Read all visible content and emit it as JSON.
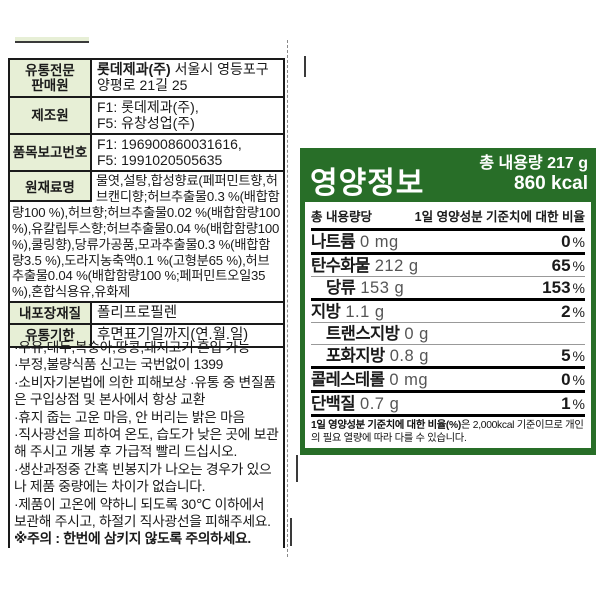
{
  "left_panel": {
    "table": {
      "rows": [
        {
          "label": "유통전문\n판매원",
          "value_bold": "롯데제과(주)",
          "value_rest": " 서울시 영등포구\n양평로 21길 25"
        },
        {
          "label": "제조원",
          "value": "F1: 롯데제과(주),\nF5: 유창성업(주)"
        },
        {
          "label": "품목보고번호",
          "value": "F1: 196900860031616,\nF5: 1991020505635"
        }
      ],
      "ingredients": {
        "label": "원재료명",
        "text": "물엿,설탕,합성향료(페퍼민트향,허브캔디향;허브추출물0.3 %(배합함량100 %),허브향;허브추출물0.02 %(배합함량100 %),유칼립투스향;허브추출물0.04 %(배합함량100 %),쿨링향),당류가공품,모과추출물0.3 %(배합함량3.5 %),도라지농축액0.1 %(고형분65 %),허브추출물0.04 %(배합함량100 %;페퍼민트오일35 %),혼합식용유,유화제"
      },
      "rows2": [
        {
          "label": "내포장재질",
          "value": "폴리프로필렌"
        },
        {
          "label": "유통기한",
          "value": "후면표기일까지(연.월.일)"
        }
      ]
    },
    "notes": [
      "·우유,대두,복숭아,땅콩,돼지고기 혼입 가능",
      "·부정,불량식품 신고는 국번없이 1399",
      "·소비자기본법에 의한 피해보상  ·유통 중 변질품은 구입상점 및 본사에서 항상 교환",
      "·휴지 줍는 고운 마음, 안 버리는 밝은 마음",
      "·직사광선을 피하여 온도, 습도가 낮은 곳에 보관해 주시고 개봉 후 가급적 빨리 드십시오.",
      "·생산과정중 간혹 빈봉지가 나오는 경우가 있으나 제품 중량에는 차이가 없습니다.",
      "·제품이 고온에 약하니 되도록 30℃ 이하에서 보관해 주시고, 하절기 직사광선을 피해주세요."
    ],
    "warning": "※주의 : 한번에 삼키지 않도록 주의하세요."
  },
  "nutrition": {
    "colors": {
      "green": "#286e28",
      "pale_green": "#e7efd6"
    },
    "title": "영양정보",
    "total_amount": "총 내용량 217 g",
    "calories": "860 kcal",
    "col_left": "총 내용량당",
    "col_right": "1일 영양성분 기준치에 대한 비율",
    "rows": [
      {
        "name": "나트륨",
        "amount": "0 mg",
        "percent": "0",
        "psuffix": "%"
      },
      {
        "name": "탄수화물",
        "amount": "212 g",
        "percent": "65",
        "psuffix": "%"
      },
      {
        "name": "당류",
        "amount": "153 g",
        "percent": "153",
        "psuffix": "%"
      },
      {
        "name": "지방",
        "amount": "1.1 g",
        "percent": "2",
        "psuffix": "%"
      },
      {
        "name": "트랜스지방",
        "amount": "0 g",
        "percent": "",
        "psuffix": ""
      },
      {
        "name": "포화지방",
        "amount": "0.8 g",
        "percent": "5",
        "psuffix": "%"
      },
      {
        "name": "콜레스테롤",
        "amount": "0 mg",
        "percent": "0",
        "psuffix": "%"
      },
      {
        "name": "단백질",
        "amount": "0.7 g",
        "percent": "1",
        "psuffix": "%"
      }
    ],
    "footnote_bold": "1일 영양성분 기준치에 대한 비율(%)",
    "footnote_rest": "은 2,000kcal 기준이므로 개인의 필요 열량에 따라 다를 수 있습니다."
  }
}
